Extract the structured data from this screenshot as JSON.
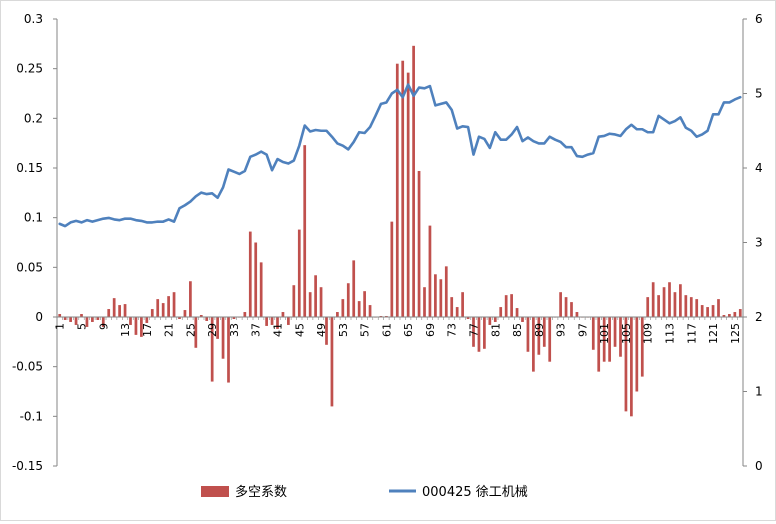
{
  "chart_data": {
    "type": "bar+line",
    "x_categories_label_every": 4,
    "x": [
      1,
      2,
      3,
      4,
      5,
      6,
      7,
      8,
      9,
      10,
      11,
      12,
      13,
      14,
      15,
      16,
      17,
      18,
      19,
      20,
      21,
      22,
      23,
      24,
      25,
      26,
      27,
      28,
      29,
      30,
      31,
      32,
      33,
      34,
      35,
      36,
      37,
      38,
      39,
      40,
      41,
      42,
      43,
      44,
      45,
      46,
      47,
      48,
      49,
      50,
      51,
      52,
      53,
      54,
      55,
      56,
      57,
      58,
      59,
      60,
      61,
      62,
      63,
      64,
      65,
      66,
      67,
      68,
      69,
      70,
      71,
      72,
      73,
      74,
      75,
      76,
      77,
      78,
      79,
      80,
      81,
      82,
      83,
      84,
      85,
      86,
      87,
      88,
      89,
      90,
      91,
      92,
      93,
      94,
      95,
      96,
      97,
      98,
      99,
      100,
      101,
      102,
      103,
      104,
      105,
      106,
      107,
      108,
      109,
      110,
      111,
      112,
      113,
      114,
      115,
      116,
      117,
      118,
      119,
      120,
      121,
      122,
      123,
      124,
      125,
      126
    ],
    "x_tick_labels": [
      "1",
      "5",
      "9",
      "13",
      "17",
      "21",
      "25",
      "29",
      "33",
      "37",
      "41",
      "45",
      "49",
      "53",
      "57",
      "61",
      "65",
      "69",
      "73",
      "77",
      "81",
      "85",
      "89",
      "93",
      "97",
      "101",
      "105",
      "109",
      "113",
      "117",
      "121",
      "125"
    ],
    "left_axis": {
      "min": -0.15,
      "max": 0.3,
      "step": 0.05,
      "tick_labels": [
        "-0.15",
        "-0.1",
        "-0.05",
        "0",
        "0.05",
        "0.1",
        "0.15",
        "0.2",
        "0.25",
        "0.3"
      ]
    },
    "right_axis": {
      "min": 0,
      "max": 6,
      "step": 1,
      "tick_labels": [
        "0",
        "1",
        "2",
        "3",
        "4",
        "5",
        "6"
      ]
    },
    "series": [
      {
        "name": "多空系数",
        "type": "bar",
        "axis": "left",
        "color": "#c0504d",
        "values": [
          0.003,
          -0.003,
          -0.005,
          -0.008,
          0.003,
          -0.01,
          -0.005,
          -0.003,
          -0.01,
          0.008,
          0.019,
          0.012,
          0.013,
          -0.008,
          -0.018,
          -0.02,
          -0.006,
          0.008,
          0.018,
          0.014,
          0.021,
          0.025,
          -0.002,
          0.007,
          0.036,
          -0.031,
          0.002,
          -0.004,
          -0.065,
          -0.022,
          -0.042,
          -0.066,
          -0.002,
          0,
          0.005,
          0.086,
          0.075,
          0.055,
          -0.009,
          -0.008,
          -0.012,
          0.005,
          -0.008,
          0.032,
          0.088,
          0.173,
          0.025,
          0.042,
          0.03,
          -0.028,
          -0.09,
          0.005,
          0.018,
          0.034,
          0.057,
          0.016,
          0.026,
          0.012,
          0,
          0.001,
          0.001,
          0.096,
          0.255,
          0.258,
          0.246,
          0.273,
          0.147,
          0.03,
          0.092,
          0.043,
          0.038,
          0.051,
          0.02,
          0.01,
          0.025,
          -0.002,
          -0.03,
          -0.035,
          -0.032,
          -0.008,
          -0.005,
          0.01,
          0.022,
          0.023,
          0.009,
          -0.005,
          -0.035,
          -0.055,
          -0.038,
          -0.03,
          -0.045,
          0,
          0.025,
          0.02,
          0.015,
          0.005,
          0,
          0,
          -0.033,
          -0.055,
          -0.045,
          -0.045,
          -0.03,
          -0.04,
          -0.095,
          -0.1,
          -0.075,
          -0.06,
          0.02,
          0.035,
          0.022,
          0.03,
          0.035,
          0.025,
          0.033,
          0.022,
          0.02,
          0.018,
          0.012,
          0.01,
          0.012,
          0.018,
          0.002,
          0.003,
          0.005,
          0.008
        ]
      },
      {
        "name": "000425 徐工机械",
        "type": "line",
        "axis": "right",
        "color": "#4f81bd",
        "values": [
          3.25,
          3.22,
          3.27,
          3.29,
          3.27,
          3.3,
          3.28,
          3.3,
          3.32,
          3.33,
          3.31,
          3.3,
          3.32,
          3.32,
          3.3,
          3.29,
          3.27,
          3.27,
          3.28,
          3.28,
          3.31,
          3.28,
          3.46,
          3.5,
          3.55,
          3.62,
          3.67,
          3.65,
          3.66,
          3.6,
          3.74,
          3.98,
          3.95,
          3.92,
          3.96,
          4.15,
          4.18,
          4.22,
          4.18,
          3.97,
          4.12,
          4.08,
          4.06,
          4.1,
          4.3,
          4.57,
          4.49,
          4.51,
          4.5,
          4.5,
          4.42,
          4.33,
          4.3,
          4.25,
          4.35,
          4.48,
          4.47,
          4.55,
          4.7,
          4.86,
          4.88,
          5.0,
          5.05,
          4.95,
          5.12,
          4.97,
          5.08,
          5.07,
          5.1,
          4.84,
          4.86,
          4.88,
          4.78,
          4.53,
          4.56,
          4.55,
          4.18,
          4.42,
          4.39,
          4.27,
          4.48,
          4.38,
          4.38,
          4.45,
          4.55,
          4.36,
          4.41,
          4.36,
          4.33,
          4.33,
          4.42,
          4.38,
          4.35,
          4.28,
          4.28,
          4.16,
          4.15,
          4.18,
          4.2,
          4.42,
          4.43,
          4.46,
          4.45,
          4.43,
          4.52,
          4.58,
          4.52,
          4.52,
          4.48,
          4.48,
          4.7,
          4.65,
          4.6,
          4.63,
          4.68,
          4.54,
          4.5,
          4.42,
          4.45,
          4.5,
          4.72,
          4.72,
          4.88,
          4.88,
          4.92,
          4.95
        ]
      }
    ],
    "legend": {
      "placement": "bottom",
      "items": [
        "多空系数",
        "000425 徐工机械"
      ]
    },
    "grid": false
  }
}
